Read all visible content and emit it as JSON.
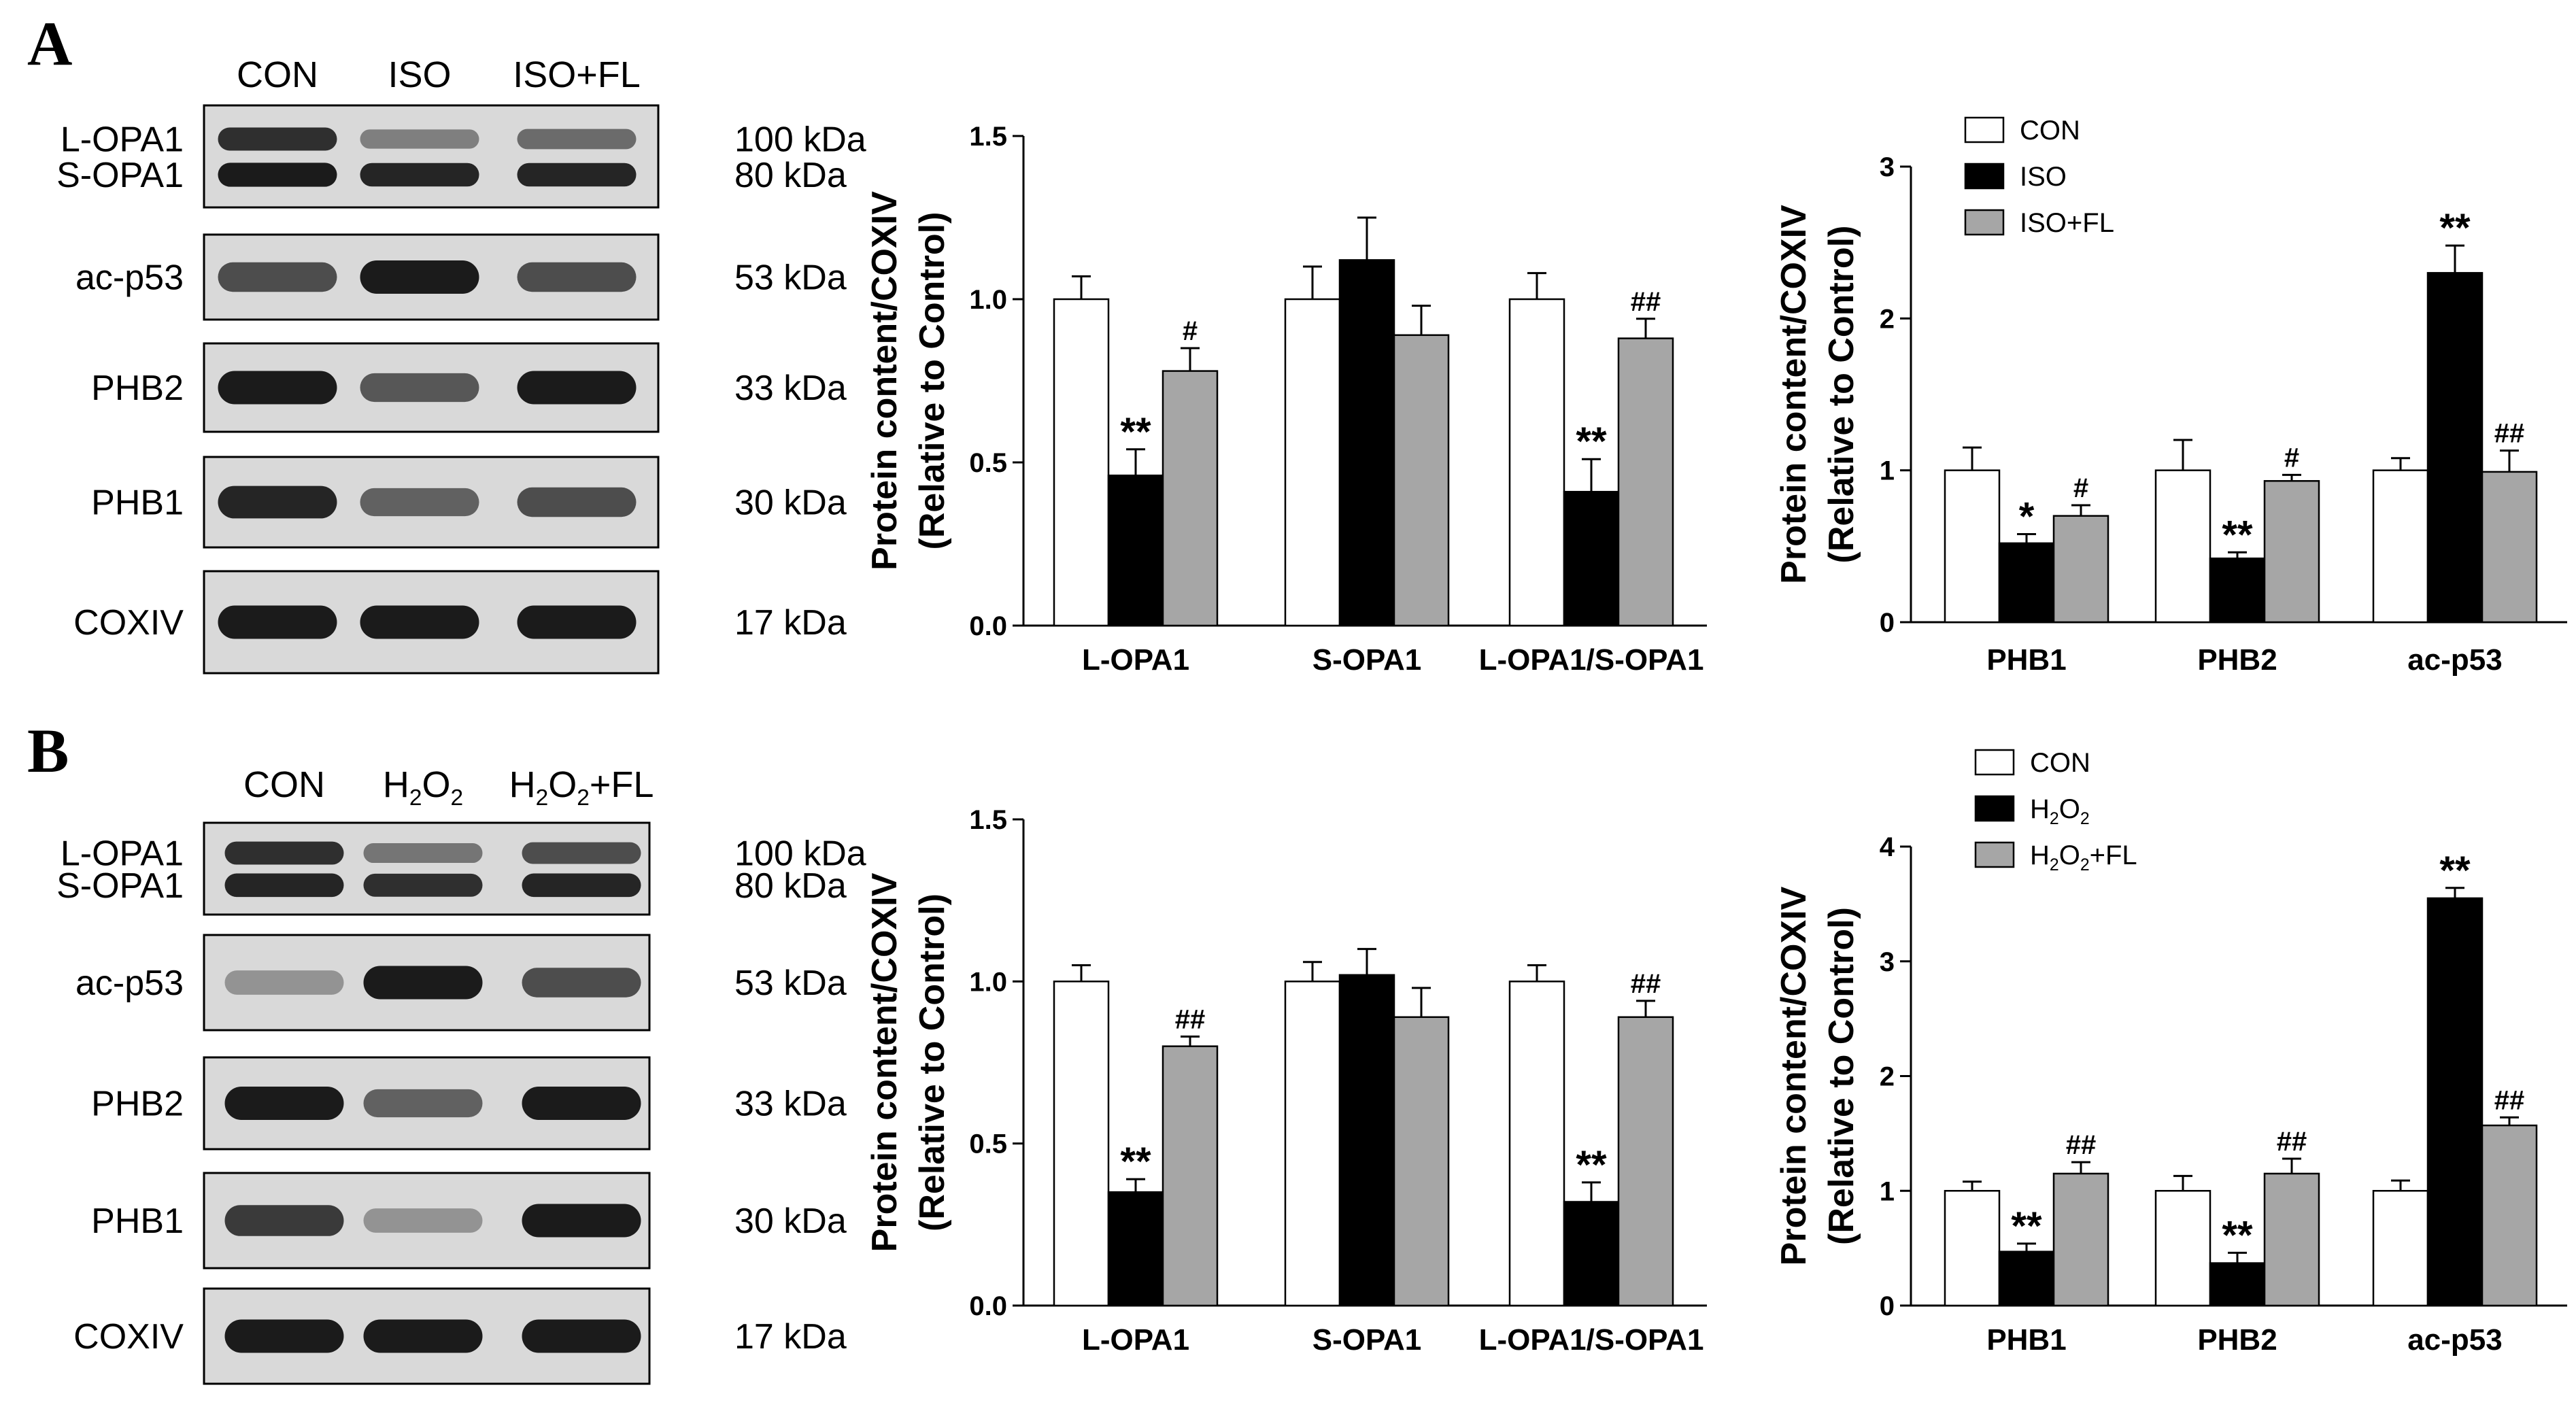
{
  "panels": [
    {
      "letter": "A",
      "blot": {
        "lanes": [
          "CON",
          "ISO",
          "ISO+FL"
        ],
        "rows": [
          {
            "labels": [
              "L-OPA1",
              "S-OPA1"
            ],
            "sizes": [
              "100 kDa",
              "80 kDa"
            ],
            "intensity": [
              [
                0.85,
                0.45,
                0.55
              ],
              [
                0.95,
                0.9,
                0.9
              ]
            ]
          },
          {
            "labels": [
              "ac-p53"
            ],
            "sizes": [
              "53 kDa"
            ],
            "intensity": [
              [
                0.7,
                0.95,
                0.7
              ]
            ]
          },
          {
            "labels": [
              "PHB2"
            ],
            "sizes": [
              "33 kDa"
            ],
            "intensity": [
              [
                0.95,
                0.65,
                0.95
              ]
            ]
          },
          {
            "labels": [
              "PHB1"
            ],
            "sizes": [
              "30 kDa"
            ],
            "intensity": [
              [
                0.9,
                0.6,
                0.7
              ]
            ]
          },
          {
            "labels": [
              "COXIV"
            ],
            "sizes": [
              "17 kDa"
            ],
            "intensity": [
              [
                0.95,
                0.95,
                0.95
              ]
            ]
          }
        ]
      }
    },
    {
      "letter": "B",
      "blot": {
        "lanes": [
          "CON",
          "H2O2",
          "H2O2+FL"
        ],
        "rows": [
          {
            "labels": [
              "L-OPA1",
              "S-OPA1"
            ],
            "sizes": [
              "100 kDa",
              "80 kDa"
            ],
            "intensity": [
              [
                0.85,
                0.5,
                0.7
              ],
              [
                0.9,
                0.85,
                0.9
              ]
            ]
          },
          {
            "labels": [
              "ac-p53"
            ],
            "sizes": [
              "53 kDa"
            ],
            "intensity": [
              [
                0.35,
                0.95,
                0.7
              ]
            ]
          },
          {
            "labels": [
              "PHB2"
            ],
            "sizes": [
              "33 kDa"
            ],
            "intensity": [
              [
                0.95,
                0.6,
                0.95
              ]
            ]
          },
          {
            "labels": [
              "PHB1"
            ],
            "sizes": [
              "30 kDa"
            ],
            "intensity": [
              [
                0.8,
                0.35,
                0.95
              ]
            ]
          },
          {
            "labels": [
              "COXIV"
            ],
            "sizes": [
              "17 kDa"
            ],
            "intensity": [
              [
                0.95,
                0.95,
                0.95
              ]
            ]
          }
        ]
      }
    }
  ],
  "colors": {
    "con": "#ffffff",
    "treat": "#000000",
    "rescue": "#a6a6a6",
    "blot_bg": "#d9d9d9",
    "band": "#111111"
  },
  "chart_data": [
    {
      "type": "bar",
      "panel": "A",
      "ylabel": [
        "Protein content/COXIV",
        "(Relative to Control)"
      ],
      "ylim": [
        0,
        1.5
      ],
      "yticks": [
        "0.0",
        "0.5",
        "1.0",
        "1.5"
      ],
      "categories": [
        "L-OPA1",
        "S-OPA1",
        "L-OPA1/S-OPA1"
      ],
      "series": [
        {
          "values": [
            1.0,
            1.0,
            1.0
          ],
          "errors": [
            0.07,
            0.1,
            0.08
          ],
          "marks": [
            "",
            "",
            ""
          ]
        },
        {
          "values": [
            0.46,
            1.12,
            0.41
          ],
          "errors": [
            0.08,
            0.13,
            0.1
          ],
          "marks": [
            "**",
            "",
            "**"
          ]
        },
        {
          "values": [
            0.78,
            0.89,
            0.88
          ],
          "errors": [
            0.07,
            0.09,
            0.06
          ],
          "marks": [
            "#",
            "",
            "##"
          ]
        }
      ],
      "legend": null
    },
    {
      "type": "bar",
      "panel": "A",
      "ylabel": [
        "Protein content/COXIV",
        "(Relative to Control)"
      ],
      "ylim": [
        0,
        3
      ],
      "yticks": [
        "0",
        "1",
        "2",
        "3"
      ],
      "categories": [
        "PHB1",
        "PHB2",
        "ac-p53"
      ],
      "series": [
        {
          "name": "CON",
          "values": [
            1.0,
            1.0,
            1.0
          ],
          "errors": [
            0.15,
            0.2,
            0.08
          ],
          "marks": [
            "",
            "",
            ""
          ]
        },
        {
          "name": "ISO",
          "values": [
            0.52,
            0.42,
            2.3
          ],
          "errors": [
            0.06,
            0.04,
            0.18
          ],
          "marks": [
            "*",
            "**",
            "**"
          ]
        },
        {
          "name": "ISO+FL",
          "values": [
            0.7,
            0.93,
            0.99
          ],
          "errors": [
            0.07,
            0.04,
            0.14
          ],
          "marks": [
            "#",
            "#",
            "##"
          ]
        }
      ],
      "legend": {
        "position": "top-left",
        "labels": [
          "CON",
          "ISO",
          "ISO+FL"
        ]
      }
    },
    {
      "type": "bar",
      "panel": "B",
      "ylabel": [
        "Protein content/COXIV",
        "(Relative to Control)"
      ],
      "ylim": [
        0,
        1.5
      ],
      "yticks": [
        "0.0",
        "0.5",
        "1.0",
        "1.5"
      ],
      "categories": [
        "L-OPA1",
        "S-OPA1",
        "L-OPA1/S-OPA1"
      ],
      "series": [
        {
          "values": [
            1.0,
            1.0,
            1.0
          ],
          "errors": [
            0.05,
            0.06,
            0.05
          ],
          "marks": [
            "",
            "",
            ""
          ]
        },
        {
          "values": [
            0.35,
            1.02,
            0.32
          ],
          "errors": [
            0.04,
            0.08,
            0.06
          ],
          "marks": [
            "**",
            "",
            "**"
          ]
        },
        {
          "values": [
            0.8,
            0.89,
            0.89
          ],
          "errors": [
            0.03,
            0.09,
            0.05
          ],
          "marks": [
            "##",
            "",
            "##"
          ]
        }
      ],
      "legend": null
    },
    {
      "type": "bar",
      "panel": "B",
      "ylabel": [
        "Protein content/COXIV",
        "(Relative to Control)"
      ],
      "ylim": [
        0,
        4
      ],
      "yticks": [
        "0",
        "1",
        "2",
        "3",
        "4"
      ],
      "categories": [
        "PHB1",
        "PHB2",
        "ac-p53"
      ],
      "series": [
        {
          "name": "CON",
          "values": [
            1.0,
            1.0,
            1.0
          ],
          "errors": [
            0.08,
            0.13,
            0.09
          ],
          "marks": [
            "",
            "",
            ""
          ]
        },
        {
          "name": "H2O2",
          "values": [
            0.47,
            0.37,
            3.55
          ],
          "errors": [
            0.07,
            0.09,
            0.09
          ],
          "marks": [
            "**",
            "**",
            "**"
          ]
        },
        {
          "name": "H2O2+FL",
          "values": [
            1.15,
            1.15,
            1.57
          ],
          "errors": [
            0.1,
            0.13,
            0.07
          ],
          "marks": [
            "##",
            "##",
            "##"
          ]
        }
      ],
      "legend": {
        "position": "top-left",
        "labels": [
          "CON",
          "H2O2",
          "H2O2+FL"
        ]
      }
    }
  ]
}
